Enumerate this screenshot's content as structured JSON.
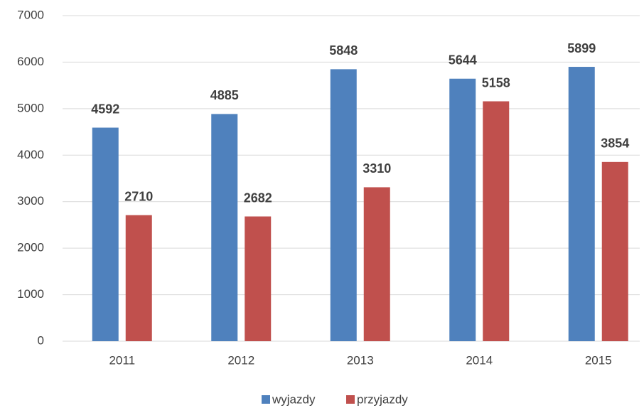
{
  "chart_data": {
    "type": "bar",
    "categories": [
      "2011",
      "2012",
      "2013",
      "2014",
      "2015"
    ],
    "series": [
      {
        "name": "wyjazdy",
        "color": "#4f81bd",
        "values": [
          4592,
          4885,
          5848,
          5644,
          5899
        ]
      },
      {
        "name": "przyjazdy",
        "color": "#c0504d",
        "values": [
          2710,
          2682,
          3310,
          5158,
          3854
        ]
      }
    ],
    "ylim": [
      0,
      7000
    ],
    "yticks": [
      0,
      1000,
      2000,
      3000,
      4000,
      5000,
      6000,
      7000
    ],
    "grid": true,
    "legend": "bottom"
  }
}
